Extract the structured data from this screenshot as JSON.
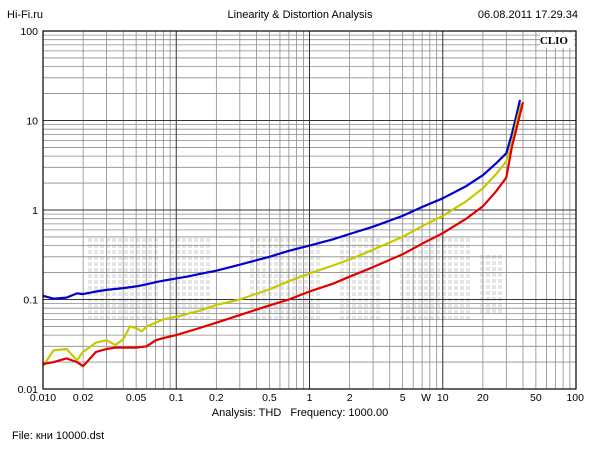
{
  "header": {
    "left": "Hi-Fi.ru",
    "title": "Linearity & Distortion Analysis",
    "right": "06.08.2011 17.29.34"
  },
  "brand": "CLIO",
  "footer": {
    "analysis": "Analysis: THD",
    "frequency": "Frequency: 1000.00",
    "file": "File: кни 10000.dst"
  },
  "chart_data": {
    "type": "line",
    "title": "Linearity & Distortion Analysis",
    "x_scale": "log",
    "y_scale": "log",
    "xlim": [
      0.01,
      100
    ],
    "ylim": [
      0.01,
      100
    ],
    "x_tick_labels": [
      {
        "v": 0.01,
        "t": "0.010"
      },
      {
        "v": 0.02,
        "t": "0.02"
      },
      {
        "v": 0.05,
        "t": "0.05"
      },
      {
        "v": 0.1,
        "t": "0.1"
      },
      {
        "v": 0.2,
        "t": "0.2"
      },
      {
        "v": 0.5,
        "t": "0.5"
      },
      {
        "v": 1,
        "t": "1"
      },
      {
        "v": 2,
        "t": "2"
      },
      {
        "v": 5,
        "t": "5"
      },
      {
        "v": 7.5,
        "t": "W"
      },
      {
        "v": 10,
        "t": "10"
      },
      {
        "v": 20,
        "t": "20"
      },
      {
        "v": 50,
        "t": "50"
      },
      {
        "v": 100,
        "t": "100"
      }
    ],
    "y_tick_labels": [
      {
        "v": 0.01,
        "t": "0.01"
      },
      {
        "v": 0.1,
        "t": "0.1"
      },
      {
        "v": 1,
        "t": "1"
      },
      {
        "v": 10,
        "t": "10"
      },
      {
        "v": 100,
        "t": "100"
      }
    ],
    "grid": true,
    "series": [
      {
        "color": "#0000cc",
        "points": [
          [
            0.01,
            0.11
          ],
          [
            0.012,
            0.102
          ],
          [
            0.015,
            0.105
          ],
          [
            0.018,
            0.117
          ],
          [
            0.02,
            0.115
          ],
          [
            0.025,
            0.123
          ],
          [
            0.03,
            0.128
          ],
          [
            0.04,
            0.134
          ],
          [
            0.05,
            0.14
          ],
          [
            0.06,
            0.148
          ],
          [
            0.07,
            0.156
          ],
          [
            0.08,
            0.162
          ],
          [
            0.1,
            0.172
          ],
          [
            0.12,
            0.18
          ],
          [
            0.15,
            0.193
          ],
          [
            0.2,
            0.21
          ],
          [
            0.3,
            0.245
          ],
          [
            0.5,
            0.3
          ],
          [
            0.7,
            0.35
          ],
          [
            1,
            0.4
          ],
          [
            1.5,
            0.47
          ],
          [
            2,
            0.54
          ],
          [
            3,
            0.65
          ],
          [
            5,
            0.86
          ],
          [
            7,
            1.08
          ],
          [
            10,
            1.35
          ],
          [
            15,
            1.85
          ],
          [
            20,
            2.45
          ],
          [
            25,
            3.3
          ],
          [
            30,
            4.3
          ],
          [
            33,
            7
          ],
          [
            36,
            12
          ],
          [
            38,
            17
          ]
        ]
      },
      {
        "color": "#c8c800",
        "points": [
          [
            0.01,
            0.018
          ],
          [
            0.012,
            0.027
          ],
          [
            0.015,
            0.028
          ],
          [
            0.018,
            0.021
          ],
          [
            0.02,
            0.026
          ],
          [
            0.025,
            0.033
          ],
          [
            0.03,
            0.035
          ],
          [
            0.035,
            0.031
          ],
          [
            0.04,
            0.036
          ],
          [
            0.045,
            0.05
          ],
          [
            0.05,
            0.048
          ],
          [
            0.055,
            0.044
          ],
          [
            0.06,
            0.05
          ],
          [
            0.07,
            0.055
          ],
          [
            0.08,
            0.06
          ],
          [
            0.1,
            0.064
          ],
          [
            0.15,
            0.075
          ],
          [
            0.2,
            0.087
          ],
          [
            0.3,
            0.1
          ],
          [
            0.5,
            0.13
          ],
          [
            0.7,
            0.16
          ],
          [
            1,
            0.195
          ],
          [
            1.5,
            0.24
          ],
          [
            2,
            0.28
          ],
          [
            3,
            0.36
          ],
          [
            5,
            0.5
          ],
          [
            7,
            0.66
          ],
          [
            10,
            0.86
          ],
          [
            15,
            1.25
          ],
          [
            20,
            1.75
          ],
          [
            25,
            2.5
          ],
          [
            30,
            3.5
          ],
          [
            33,
            5.5
          ],
          [
            36,
            10
          ],
          [
            39,
            15.5
          ]
        ]
      },
      {
        "color": "#e00000",
        "points": [
          [
            0.01,
            0.019
          ],
          [
            0.012,
            0.02
          ],
          [
            0.015,
            0.022
          ],
          [
            0.018,
            0.02
          ],
          [
            0.02,
            0.018
          ],
          [
            0.025,
            0.026
          ],
          [
            0.03,
            0.028
          ],
          [
            0.035,
            0.029
          ],
          [
            0.04,
            0.029
          ],
          [
            0.05,
            0.029
          ],
          [
            0.06,
            0.03
          ],
          [
            0.07,
            0.035
          ],
          [
            0.08,
            0.037
          ],
          [
            0.1,
            0.04
          ],
          [
            0.15,
            0.048
          ],
          [
            0.2,
            0.055
          ],
          [
            0.3,
            0.067
          ],
          [
            0.5,
            0.086
          ],
          [
            0.7,
            0.1
          ],
          [
            1,
            0.123
          ],
          [
            1.5,
            0.15
          ],
          [
            2,
            0.18
          ],
          [
            3,
            0.23
          ],
          [
            5,
            0.32
          ],
          [
            7,
            0.42
          ],
          [
            10,
            0.55
          ],
          [
            15,
            0.8
          ],
          [
            20,
            1.1
          ],
          [
            25,
            1.6
          ],
          [
            30,
            2.3
          ],
          [
            33,
            5
          ],
          [
            37,
            10
          ],
          [
            40,
            16
          ]
        ]
      }
    ]
  }
}
